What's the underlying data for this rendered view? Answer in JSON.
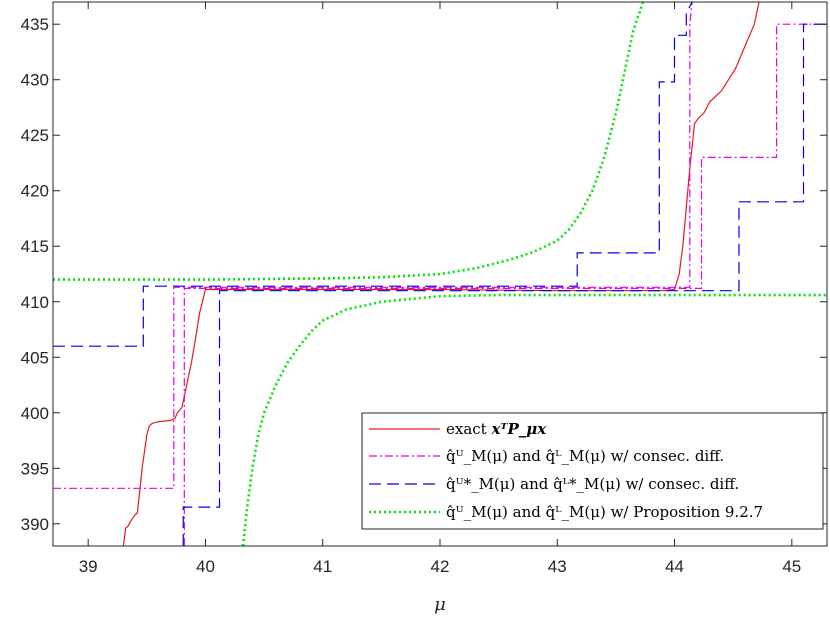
{
  "chart_data": {
    "type": "line",
    "xlabel": "μ",
    "ylabel": "",
    "xlim": [
      38.7,
      45.3
    ],
    "ylim": [
      388,
      437
    ],
    "xticks": [
      39,
      40,
      41,
      42,
      43,
      44,
      45
    ],
    "yticks": [
      390,
      395,
      400,
      405,
      410,
      415,
      420,
      425,
      430,
      435
    ],
    "grid": false,
    "legend_position": "bottom-right",
    "series": [
      {
        "name": "exact 𝐱ᵀP_μ𝐱",
        "color": "#e41a1c",
        "style": "solid",
        "x": [
          39.3,
          39.32,
          39.34,
          39.36,
          39.38,
          39.4,
          39.42,
          39.44,
          39.46,
          39.48,
          39.5,
          39.52,
          39.54,
          39.56,
          39.6,
          39.7,
          39.74,
          39.76,
          39.8,
          39.84,
          39.88,
          39.92,
          39.95,
          40.0,
          40.2,
          41.0,
          42.0,
          43.0,
          43.5,
          43.9,
          44.0,
          44.04,
          44.07,
          44.1,
          44.13,
          44.17,
          44.2,
          44.25,
          44.3,
          44.4,
          44.46,
          44.52,
          44.56,
          44.6,
          44.64,
          44.68,
          44.72
        ],
        "y": [
          388.0,
          389.6,
          389.8,
          390.2,
          390.5,
          390.8,
          391.0,
          393.0,
          395.0,
          396.5,
          398.0,
          398.8,
          399.0,
          399.1,
          399.2,
          399.3,
          399.5,
          400.0,
          400.5,
          402.5,
          404.5,
          407.0,
          409.0,
          411.1,
          411.1,
          411.1,
          411.1,
          411.0,
          411.0,
          411.0,
          411.1,
          412.5,
          415.0,
          418.5,
          422.0,
          426.0,
          426.5,
          427.0,
          428.0,
          429.0,
          430.0,
          431.0,
          432.0,
          433.0,
          434.0,
          435.0,
          437.0
        ]
      },
      {
        "name": "q̂ᵁ_M(μ) and q̂ᴸ_M(μ) w/ consec. diff. (upper)",
        "color": "#e600e6",
        "style": "dashdot",
        "x": [
          38.7,
          39.73,
          39.73,
          44.13,
          44.13,
          44.15
        ],
        "y": [
          393.2,
          393.2,
          411.3,
          411.3,
          435.0,
          437.0
        ]
      },
      {
        "name": "q̂ᵁ_M(μ) and q̂ᴸ_M(μ) w/ consec. diff. (lower)",
        "color": "#e600e6",
        "style": "dashdot",
        "x": [
          39.82,
          39.82,
          44.23,
          44.23,
          44.87,
          44.87,
          45.3
        ],
        "y": [
          388.0,
          411.2,
          411.2,
          423.0,
          423.0,
          435.0,
          435.0
        ]
      },
      {
        "name": "q̂ᵁ*_M(μ) and q̂ᴸ*_M(μ) w/ consec. diff. (upper)",
        "color": "#0000e6",
        "style": "dashed",
        "x": [
          38.7,
          39.47,
          39.47,
          43.17,
          43.17,
          43.87,
          43.87,
          44.0,
          44.0,
          44.1,
          44.1,
          44.15
        ],
        "y": [
          406.0,
          406.0,
          411.4,
          411.4,
          414.4,
          414.4,
          429.8,
          429.8,
          434.0,
          434.0,
          436.0,
          437.0
        ]
      },
      {
        "name": "q̂ᵁ*_M(μ) and q̂ᴸ*_M(μ) w/ consec. diff. (lower)",
        "color": "#0000e6",
        "style": "dashed",
        "x": [
          39.81,
          39.81,
          40.12,
          40.12,
          44.55,
          44.55,
          45.1,
          45.1,
          45.3
        ],
        "y": [
          388.0,
          391.5,
          391.5,
          411.0,
          411.0,
          419.0,
          419.0,
          435.0,
          435.0
        ]
      },
      {
        "name": "q̂ᵁ_M(μ) and q̂ᴸ_M(μ) w/ Proposition 9.2.7 (upper)",
        "color": "#00e600",
        "style": "dotted",
        "x": [
          38.7,
          40.0,
          41.0,
          41.5,
          42.0,
          42.3,
          42.6,
          42.8,
          43.0,
          43.1,
          43.2,
          43.3,
          43.4,
          43.5,
          43.55,
          43.6,
          43.65,
          43.7,
          43.73
        ],
        "y": [
          412.0,
          412.0,
          412.1,
          412.2,
          412.5,
          413.0,
          413.8,
          414.5,
          415.5,
          416.5,
          418.0,
          420.0,
          423.0,
          427.0,
          429.5,
          432.0,
          434.5,
          436.0,
          437.0
        ]
      },
      {
        "name": "q̂ᵁ_M(μ) and q̂ᴸ_M(μ) w/ Proposition 9.2.7 (lower)",
        "color": "#00e600",
        "style": "dotted",
        "x": [
          40.32,
          40.35,
          40.4,
          40.45,
          40.5,
          40.6,
          40.7,
          40.8,
          40.9,
          41.0,
          41.2,
          41.5,
          42.0,
          42.5,
          43.0,
          44.0,
          45.3
        ],
        "y": [
          388.0,
          391.0,
          395.0,
          398.0,
          400.0,
          402.5,
          404.5,
          406.0,
          407.3,
          408.3,
          409.3,
          410.0,
          410.5,
          410.6,
          410.6,
          410.6,
          410.6
        ]
      }
    ],
    "legend": [
      {
        "prefix": "exact ",
        "math": "xᵀP_μx",
        "color": "#e41a1c",
        "style": "solid"
      },
      {
        "prefix": "q̂ᵁ_M(μ) and q̂ᴸ_M(μ) w/ consec. diff.",
        "color": "#e600e6",
        "style": "dashdot"
      },
      {
        "prefix": "q̂ᵁ*_M(μ) and q̂ᴸ*_M(μ) w/ consec. diff.",
        "color": "#0000e6",
        "style": "dashed"
      },
      {
        "prefix": "q̂ᵁ_M(μ) and q̂ᴸ_M(μ) w/ Proposition 9.2.7",
        "color": "#00e600",
        "style": "dotted"
      }
    ]
  }
}
